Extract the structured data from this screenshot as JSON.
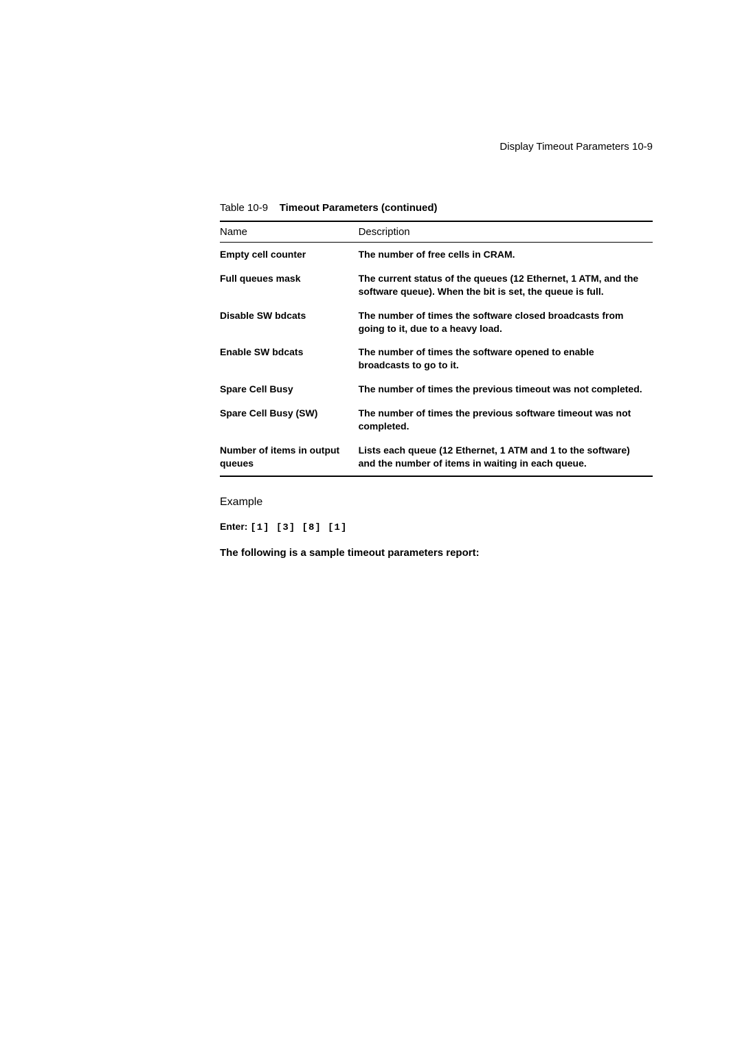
{
  "header": {
    "text": "Display Timeout Parameters 10-9"
  },
  "table": {
    "caption_label": "Table 10-9",
    "caption_title": "Timeout Parameters  (continued)",
    "columns": [
      "Name",
      "Description"
    ],
    "rows": [
      {
        "name": "Empty cell counter",
        "desc": "The number of free cells in CRAM."
      },
      {
        "name": "Full queues mask",
        "desc": "The current status of the queues (12 Ethernet, 1 ATM, and the software queue). When the bit is set, the queue is full."
      },
      {
        "name": "Disable SW bdcats",
        "desc": "The number of times the software closed broadcasts from going to it, due to a heavy load."
      },
      {
        "name": "Enable SW bdcats",
        "desc": "The number of times the software opened to enable broadcasts to go to it."
      },
      {
        "name": "Spare Cell Busy",
        "desc": "The number of times the previous timeout was not completed."
      },
      {
        "name": "Spare Cell Busy (SW)",
        "desc": "The number of times the previous software timeout was not completed."
      },
      {
        "name": "Number of items in output queues",
        "desc": "Lists each queue (12 Ethernet, 1 ATM and 1 to the software) and the number of items in waiting in each queue."
      }
    ]
  },
  "example": {
    "heading": "Example",
    "enter_label": "Enter:",
    "enter_code": "[1] [3] [8] [1]",
    "sample_text": "The following is a sample timeout parameters report:"
  }
}
